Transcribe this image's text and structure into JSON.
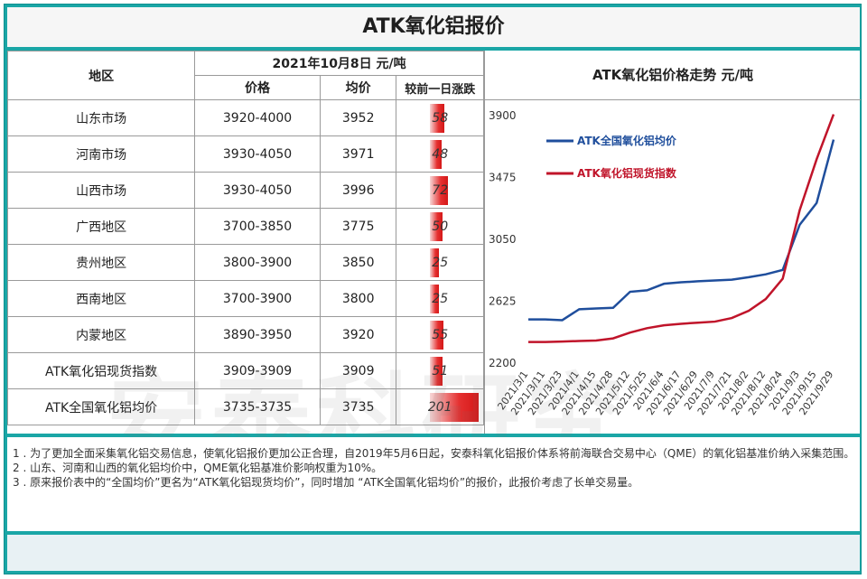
{
  "title": "ATK氧化铝报价",
  "table": {
    "header_region": "地区",
    "header_date": "2021年10月8日  元/吨",
    "header_price": "价格",
    "header_avg": "均价",
    "header_change": "较前一日涨跌",
    "rows": [
      {
        "region": "山东市场",
        "price": "3920-4000",
        "avg": "3952",
        "change": "58",
        "change_value": 58
      },
      {
        "region": "河南市场",
        "price": "3930-4050",
        "avg": "3971",
        "change": "48",
        "change_value": 48
      },
      {
        "region": "山西市场",
        "price": "3930-4050",
        "avg": "3996",
        "change": "72",
        "change_value": 72
      },
      {
        "region": "广西地区",
        "price": "3700-3850",
        "avg": "3775",
        "change": "50",
        "change_value": 50
      },
      {
        "region": "贵州地区",
        "price": "3800-3900",
        "avg": "3850",
        "change": "25",
        "change_value": 25
      },
      {
        "region": "西南地区",
        "price": "3700-3900",
        "avg": "3800",
        "change": "25",
        "change_value": 25
      },
      {
        "region": "内蒙地区",
        "price": "3890-3950",
        "avg": "3920",
        "change": "55",
        "change_value": 55
      },
      {
        "region": "ATK氧化铝现货指数",
        "price": "3909-3909",
        "avg": "3909",
        "change": "51",
        "change_value": 51
      },
      {
        "region": "ATK全国氧化铝均价",
        "price": "3735-3735",
        "avg": "3735",
        "change": "201",
        "change_value": 201
      }
    ]
  },
  "chart_data": {
    "type": "line",
    "title": "ATK氧化铝价格走势  元/吨",
    "yticks": [
      2200,
      2625,
      3050,
      3475,
      3900
    ],
    "ylim": [
      2200,
      3900
    ],
    "categories": [
      "2021/3/1",
      "2021/3/11",
      "2021/3/23",
      "2021/4/1",
      "2021/4/15",
      "2021/4/28",
      "2021/5/12",
      "2021/5/25",
      "2021/6/4",
      "2021/6/17",
      "2021/6/29",
      "2021/7/9",
      "2021/7/21",
      "2021/8/2",
      "2021/8/12",
      "2021/8/24",
      "2021/9/3",
      "2021/9/15",
      "2021/9/29"
    ],
    "series": [
      {
        "name": "ATK全国氧化铝均价",
        "color": "#1f4e9c",
        "values": [
          2500,
          2500,
          2495,
          2570,
          2575,
          2580,
          2690,
          2700,
          2745,
          2755,
          2762,
          2768,
          2773,
          2790,
          2810,
          2840,
          3150,
          3300,
          3735
        ]
      },
      {
        "name": "ATK氧化铝现货指数",
        "color": "#c0142a",
        "values": [
          2345,
          2345,
          2348,
          2352,
          2355,
          2370,
          2410,
          2440,
          2460,
          2470,
          2478,
          2485,
          2510,
          2560,
          2640,
          2780,
          3250,
          3600,
          3909
        ]
      }
    ]
  },
  "notes": [
    "1 . 为了更加全面采集氧化铝交易信息，使氧化铝报价更加公正合理，自2019年5月6日起，安泰科氧化铝报价体系将前海联合交易中心（QME）的氧化铝基准价纳入采集范围。",
    "2 . 山东、河南和山西的氧化铝均价中，QME氧化铝基准价影响权重为10%。",
    "3 . 原来报价表中的“全国均价”更名为“ATK氧化铝现货均价”，同时增加 “ATK全国氧化铝均价”的报价，此报价考虑了长单交易量。"
  ],
  "watermark": "安泰科研究"
}
